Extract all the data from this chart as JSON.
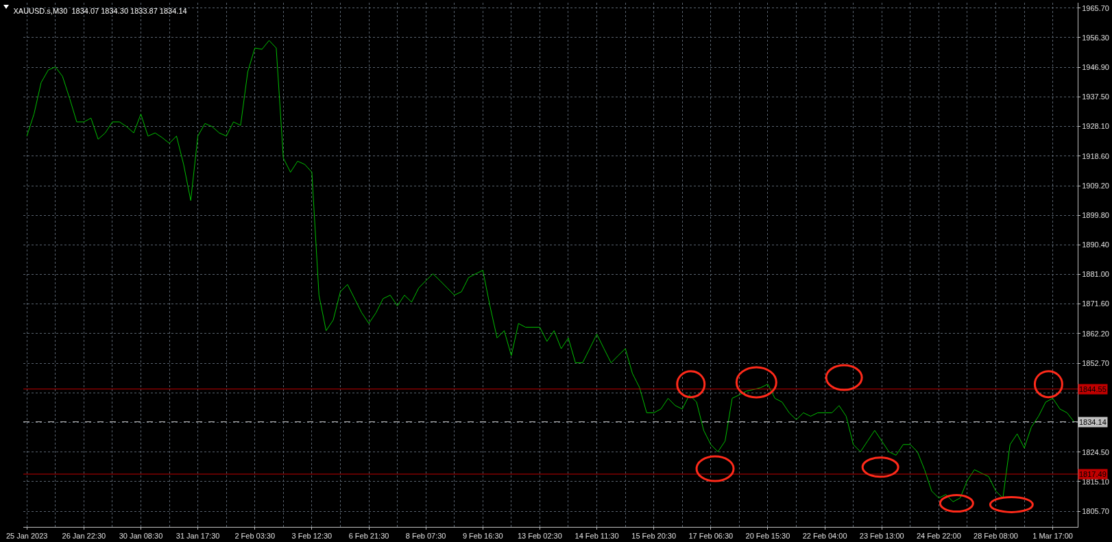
{
  "chart_data": {
    "type": "line",
    "title": "XAUUSD.s,M30  1834.07 1834.30 1833.87 1834.14",
    "categories": [
      "25 Jan 2023",
      null,
      null,
      null,
      null,
      null,
      null,
      null,
      "26 Jan 22:30",
      null,
      null,
      null,
      null,
      null,
      null,
      null,
      "30 Jan 08:30",
      null,
      null,
      null,
      null,
      null,
      null,
      null,
      "31 Jan 17:30",
      null,
      null,
      null,
      null,
      null,
      null,
      null,
      "2 Feb 03:30",
      null,
      null,
      null,
      null,
      null,
      null,
      null,
      "3 Feb 12:30",
      null,
      null,
      null,
      null,
      null,
      null,
      null,
      "6 Feb 21:30",
      null,
      null,
      null,
      null,
      null,
      null,
      null,
      "8 Feb 07:30",
      null,
      null,
      null,
      null,
      null,
      null,
      null,
      "9 Feb 16:30",
      null,
      null,
      null,
      null,
      null,
      null,
      null,
      "13 Feb 02:30",
      null,
      null,
      null,
      null,
      null,
      null,
      null,
      "14 Feb 11:30",
      null,
      null,
      null,
      null,
      null,
      null,
      null,
      "15 Feb 20:30",
      null,
      null,
      null,
      null,
      null,
      null,
      null,
      "17 Feb 06:30",
      null,
      null,
      null,
      null,
      null,
      null,
      null,
      "20 Feb 15:30",
      null,
      null,
      null,
      null,
      null,
      null,
      null,
      "22 Feb 04:00",
      null,
      null,
      null,
      null,
      null,
      null,
      null,
      "23 Feb 13:00",
      null,
      null,
      null,
      null,
      null,
      null,
      null,
      "24 Feb 22:00",
      null,
      null,
      null,
      null,
      null,
      null,
      null,
      "28 Feb 08:00",
      null,
      null,
      null,
      null,
      null,
      null,
      null,
      "1 Mar 17:00",
      null,
      null,
      null
    ],
    "series": [
      {
        "color": "#00c000",
        "values": [
          1925,
          1932,
          1942,
          1946,
          1947,
          1944,
          1937,
          1929.5,
          1929.5,
          1930.7,
          1924,
          1926,
          1929.5,
          1929.5,
          1928,
          1926,
          1932,
          1925,
          1926,
          1924.5,
          1922.7,
          1925,
          1916,
          1904.5,
          1925,
          1929,
          1928,
          1926,
          1925,
          1929.5,
          1928.4,
          1945.4,
          1953,
          1952.6,
          1955.4,
          1953,
          1918,
          1913.5,
          1917,
          1916,
          1913.5,
          1874.4,
          1863.1,
          1866.5,
          1875.5,
          1877.8,
          1873.3,
          1868.8,
          1865.4,
          1868.8,
          1873.3,
          1874.4,
          1871,
          1874.4,
          1872.2,
          1876.7,
          1879,
          1881.2,
          1879,
          1876.7,
          1874.4,
          1875.5,
          1880,
          1881.2,
          1882.3,
          1871,
          1860.8,
          1863.1,
          1855.2,
          1865.4,
          1864.2,
          1864.2,
          1864.2,
          1859.7,
          1863.1,
          1857.4,
          1860.8,
          1852.9,
          1852.9,
          1857.4,
          1862,
          1857.4,
          1852.9,
          1855.2,
          1857.4,
          1849.5,
          1845,
          1837,
          1837,
          1838.2,
          1841.6,
          1839.3,
          1838.2,
          1842.7,
          1840.4,
          1831.4,
          1826.9,
          1824.6,
          1828,
          1841.6,
          1842.7,
          1843.9,
          1844.4,
          1845,
          1846.1,
          1841.6,
          1840.4,
          1837,
          1834.8,
          1837,
          1835.9,
          1837,
          1837,
          1837,
          1839.3,
          1835.9,
          1826.9,
          1824.6,
          1828,
          1831.4,
          1828,
          1824.6,
          1823.5,
          1826.9,
          1826.9,
          1824.6,
          1818.9,
          1812.1,
          1809.9,
          1811,
          1808.7,
          1809.9,
          1815.5,
          1818.9,
          1817.8,
          1816.7,
          1812.1,
          1809.9,
          1826.9,
          1830.3,
          1825.8,
          1832.5,
          1835.9,
          1840.4,
          1841.6,
          1838.2,
          1837,
          1834.1
        ]
      }
    ],
    "ylim": [
      1800.7,
      1967.4
    ],
    "yticks": [
      {
        "value": 1965.7,
        "label": "1965.70"
      },
      {
        "value": 1956.3,
        "label": "1956.30"
      },
      {
        "value": 1946.9,
        "label": "1946.90"
      },
      {
        "value": 1937.5,
        "label": "1937.50"
      },
      {
        "value": 1928.1,
        "label": "1928.10"
      },
      {
        "value": 1918.6,
        "label": "1918.60"
      },
      {
        "value": 1909.2,
        "label": "1909.20"
      },
      {
        "value": 1899.8,
        "label": "1899.80"
      },
      {
        "value": 1890.4,
        "label": "1890.40"
      },
      {
        "value": 1881,
        "label": "1881.00"
      },
      {
        "value": 1871.6,
        "label": "1871.60"
      },
      {
        "value": 1862.2,
        "label": "1862.20"
      },
      {
        "value": 1852.7,
        "label": "1852.70"
      },
      {
        "value": 1843.3,
        "label": null
      },
      {
        "value": 1833.9,
        "label": null
      },
      {
        "value": 1824.5,
        "label": "1824.50"
      },
      {
        "value": 1815.1,
        "label": "1815.10"
      },
      {
        "value": 1805.7,
        "label": "1805.70"
      }
    ],
    "ref_lines": [
      {
        "axis": "y",
        "value": 1844.55,
        "label": "1844.55",
        "color": "#c00000",
        "line_style": "solid"
      },
      {
        "axis": "y",
        "value": 1817.49,
        "label": "1817.49",
        "color": "#c00000",
        "line_style": "solid"
      },
      {
        "axis": "y",
        "value": 1834.14,
        "label": "1834.14",
        "color": "#c0c0c0",
        "line_style": "dashed"
      }
    ],
    "grid": true,
    "legend": false,
    "marker": "none",
    "line_style": "solid"
  }
}
